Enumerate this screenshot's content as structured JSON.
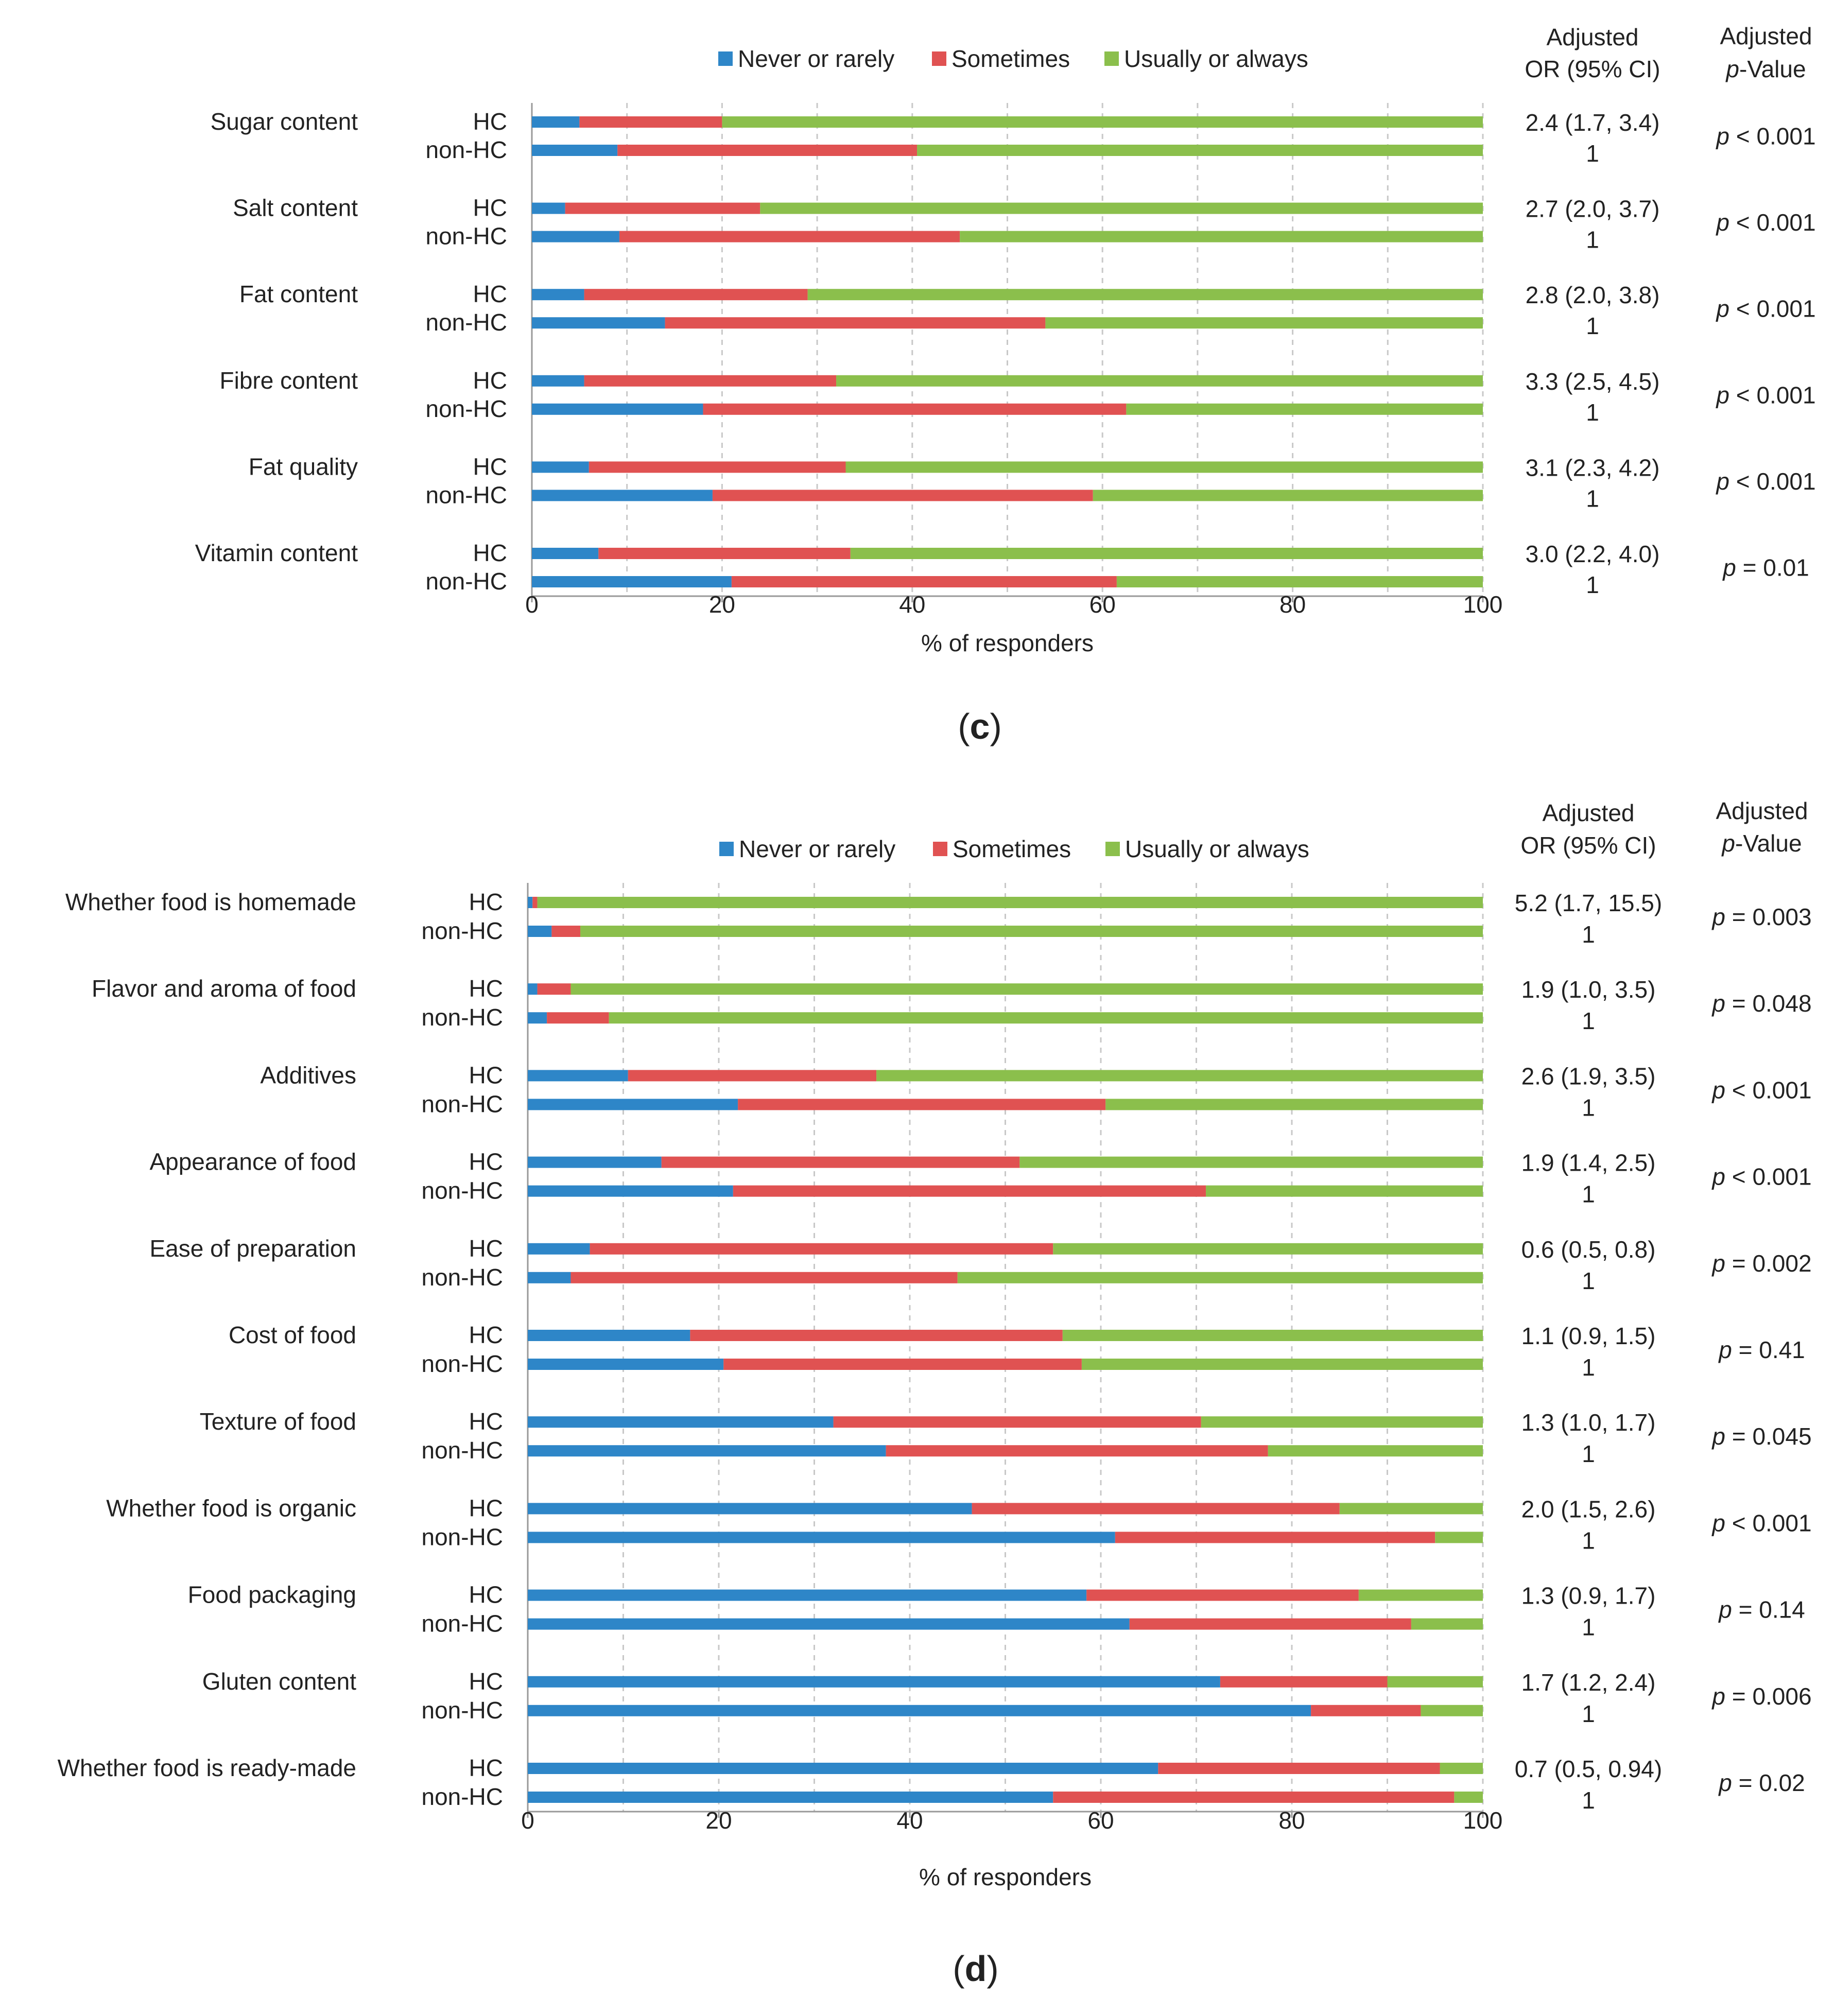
{
  "legend": {
    "never": "Never or rarely",
    "sometimes": "Sometimes",
    "usually": "Usually or always"
  },
  "colors": {
    "never": "#2E86C8",
    "sometimes": "#E05252",
    "usually": "#8BBF4C",
    "grid": "#C8C8C8",
    "axis": "#999999",
    "text": "#222222"
  },
  "panels": [
    {
      "panel_label": "c",
      "or_header": [
        "Adjusted",
        "OR (95% CI)"
      ],
      "p_header": [
        "Adjusted",
        "p",
        "-Value"
      ]
    },
    {
      "panel_label": "d",
      "or_header": [
        "Adjusted",
        "OR (95% CI)"
      ],
      "p_header": [
        "Adjusted",
        "p",
        "-Value"
      ]
    }
  ],
  "chart_data": [
    {
      "type": "bar",
      "orientation": "horizontal",
      "stacked": true,
      "title": "",
      "xlabel": "% of responders",
      "ylabel": "",
      "xlim": [
        0,
        100
      ],
      "xticks": [
        0,
        20,
        40,
        60,
        80,
        100
      ],
      "group_labels": [
        "HC",
        "non-HC"
      ],
      "series_names": [
        "Never or rarely",
        "Sometimes",
        "Usually or always"
      ],
      "categories": [
        {
          "name": "Sugar content",
          "or": "2.4 (1.7, 3.4)",
          "or_ref": "1",
          "p_pre": "p",
          "p_post": " < 0.001",
          "HC": [
            5,
            15,
            80
          ],
          "nonHC": [
            9,
            31.5,
            59.5
          ]
        },
        {
          "name": "Salt content",
          "or": "2.7 (2.0, 3.7)",
          "or_ref": "1",
          "p_pre": "p",
          "p_post": " < 0.001",
          "HC": [
            3.5,
            20.5,
            76
          ],
          "nonHC": [
            9.2,
            35.8,
            55
          ]
        },
        {
          "name": "Fat content",
          "or": "2.8 (2.0, 3.8)",
          "or_ref": "1",
          "p_pre": "p",
          "p_post": " < 0.001",
          "HC": [
            5.5,
            23.5,
            71
          ],
          "nonHC": [
            14,
            40,
            46
          ]
        },
        {
          "name": "Fibre content",
          "or": "3.3 (2.5, 4.5)",
          "or_ref": "1",
          "p_pre": "p",
          "p_post": " < 0.001",
          "HC": [
            5.5,
            26.5,
            68
          ],
          "nonHC": [
            18,
            44.5,
            37.5
          ]
        },
        {
          "name": "Fat quality",
          "or": "3.1 (2.3, 4.2)",
          "or_ref": "1",
          "p_pre": "p",
          "p_post": " < 0.001",
          "HC": [
            6,
            27,
            67
          ],
          "nonHC": [
            19,
            40,
            41
          ]
        },
        {
          "name": "Vitamin content",
          "or": "3.0 (2.2, 4.0)",
          "or_ref": "1",
          "p_pre": "p",
          "p_post": " = 0.01",
          "HC": [
            7,
            26.5,
            66.5
          ],
          "nonHC": [
            21,
            40.5,
            38.5
          ]
        }
      ]
    },
    {
      "type": "bar",
      "orientation": "horizontal",
      "stacked": true,
      "title": "",
      "xlabel": "% of responders",
      "ylabel": "",
      "xlim": [
        0,
        100
      ],
      "xticks": [
        0,
        20,
        40,
        60,
        80,
        100
      ],
      "group_labels": [
        "HC",
        "non-HC"
      ],
      "series_names": [
        "Never or rarely",
        "Sometimes",
        "Usually or always"
      ],
      "categories": [
        {
          "name": "Whether food is homemade",
          "or": "5.2 (1.7, 15.5)",
          "or_ref": "1",
          "p_pre": "p",
          "p_post": " = 0.003",
          "HC": [
            0.5,
            0.5,
            99
          ],
          "nonHC": [
            2.5,
            3,
            94.5
          ]
        },
        {
          "name": "Flavor and aroma of food",
          "or": "1.9 (1.0, 3.5)",
          "or_ref": "1",
          "p_pre": "p",
          "p_post": " = 0.048",
          "HC": [
            1,
            3.5,
            95.5
          ],
          "nonHC": [
            2,
            6.5,
            91.5
          ]
        },
        {
          "name": "Additives",
          "or": "2.6 (1.9, 3.5)",
          "or_ref": "1",
          "p_pre": "p",
          "p_post": " < 0.001",
          "HC": [
            10.5,
            26,
            63.5
          ],
          "nonHC": [
            22,
            38.5,
            39.5
          ]
        },
        {
          "name": "Appearance of food",
          "or": "1.9 (1.4, 2.5)",
          "or_ref": "1",
          "p_pre": "p",
          "p_post": " < 0.001",
          "HC": [
            14,
            37.5,
            48.5
          ],
          "nonHC": [
            21.5,
            49.5,
            29
          ]
        },
        {
          "name": "Ease of preparation",
          "or": "0.6 (0.5, 0.8)",
          "or_ref": "1",
          "p_pre": "p",
          "p_post": " = 0.002",
          "HC": [
            6.5,
            48.5,
            45
          ],
          "nonHC": [
            4.5,
            40.5,
            55
          ]
        },
        {
          "name": "Cost of food",
          "or": "1.1 (0.9, 1.5)",
          "or_ref": "1",
          "p_pre": "p",
          "p_post": " = 0.41",
          "HC": [
            17,
            39,
            44
          ],
          "nonHC": [
            20.5,
            37.5,
            42
          ]
        },
        {
          "name": "Texture of food",
          "or": "1.3 (1.0, 1.7)",
          "or_ref": "1",
          "p_pre": "p",
          "p_post": " = 0.045",
          "HC": [
            32,
            38.5,
            29.5
          ],
          "nonHC": [
            37.5,
            40,
            22.5
          ]
        },
        {
          "name": "Whether food is organic",
          "or": "2.0 (1.5, 2.6)",
          "or_ref": "1",
          "p_pre": "p",
          "p_post": " < 0.001",
          "HC": [
            46.5,
            38.5,
            15
          ],
          "nonHC": [
            61.5,
            33.5,
            5
          ]
        },
        {
          "name": "Food packaging",
          "or": "1.3 (0.9, 1.7)",
          "or_ref": "1",
          "p_pre": "p",
          "p_post": " = 0.14",
          "HC": [
            58.5,
            28.5,
            13
          ],
          "nonHC": [
            63,
            29.5,
            7.5
          ]
        },
        {
          "name": "Gluten content",
          "or": "1.7 (1.2, 2.4)",
          "or_ref": "1",
          "p_pre": "p",
          "p_post": " = 0.006",
          "HC": [
            72.5,
            17.5,
            10
          ],
          "nonHC": [
            82,
            11.5,
            6.5
          ]
        },
        {
          "name": "Whether food is ready-made",
          "or": "0.7 (0.5, 0.94)",
          "or_ref": "1",
          "p_pre": "p",
          "p_post": " = 0.02",
          "HC": [
            66,
            29.5,
            4.5
          ],
          "nonHC": [
            55,
            42,
            3
          ]
        }
      ]
    }
  ]
}
